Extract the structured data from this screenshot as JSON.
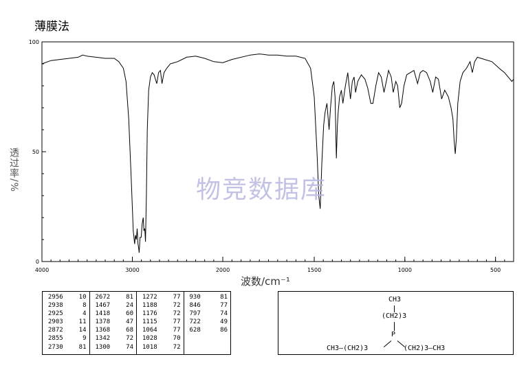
{
  "method_label": "薄膜法",
  "watermark": "物竞数据库",
  "chart_data": {
    "type": "line",
    "xlabel": "波数/cm⁻¹",
    "ylabel": "透过率/%",
    "xlim": [
      4000,
      400
    ],
    "ylim": [
      0,
      100
    ],
    "x_ticks": [
      "4000",
      "3000",
      "2000",
      "1500",
      "1000",
      "500"
    ],
    "y_ticks": [
      "0",
      "50",
      "100"
    ],
    "series": [
      {
        "points": [
          [
            4000,
            90
          ],
          [
            3900,
            91.5
          ],
          [
            3800,
            92
          ],
          [
            3700,
            92.5
          ],
          [
            3600,
            93
          ],
          [
            3550,
            94
          ],
          [
            3500,
            93.5
          ],
          [
            3400,
            93
          ],
          [
            3300,
            92.5
          ],
          [
            3200,
            92.5
          ],
          [
            3150,
            91
          ],
          [
            3100,
            88
          ],
          [
            3070,
            82
          ],
          [
            3040,
            65
          ],
          [
            3010,
            35
          ],
          [
            2990,
            14
          ],
          [
            2975,
            8
          ],
          [
            2966,
            12
          ],
          [
            2956,
            10
          ],
          [
            2947,
            15
          ],
          [
            2938,
            8
          ],
          [
            2930,
            6
          ],
          [
            2925,
            4
          ],
          [
            2915,
            11
          ],
          [
            2903,
            11
          ],
          [
            2892,
            17
          ],
          [
            2880,
            20
          ],
          [
            2872,
            14
          ],
          [
            2862,
            15
          ],
          [
            2855,
            9
          ],
          [
            2845,
            30
          ],
          [
            2835,
            60
          ],
          [
            2820,
            78
          ],
          [
            2800,
            84
          ],
          [
            2780,
            86
          ],
          [
            2760,
            85
          ],
          [
            2730,
            81
          ],
          [
            2710,
            86
          ],
          [
            2690,
            87
          ],
          [
            2672,
            81
          ],
          [
            2650,
            86
          ],
          [
            2620,
            88
          ],
          [
            2580,
            90
          ],
          [
            2500,
            91
          ],
          [
            2400,
            93
          ],
          [
            2300,
            93.5
          ],
          [
            2200,
            92.5
          ],
          [
            2100,
            91
          ],
          [
            2000,
            90.5
          ],
          [
            1950,
            92
          ],
          [
            1850,
            94
          ],
          [
            1800,
            94.5
          ],
          [
            1750,
            94
          ],
          [
            1700,
            94
          ],
          [
            1650,
            93.5
          ],
          [
            1600,
            93.5
          ],
          [
            1550,
            92.5
          ],
          [
            1520,
            88
          ],
          [
            1500,
            75
          ],
          [
            1485,
            50
          ],
          [
            1475,
            30
          ],
          [
            1467,
            24
          ],
          [
            1458,
            45
          ],
          [
            1448,
            62
          ],
          [
            1440,
            68
          ],
          [
            1430,
            72
          ],
          [
            1418,
            60
          ],
          [
            1410,
            70
          ],
          [
            1400,
            80
          ],
          [
            1392,
            82
          ],
          [
            1385,
            75
          ],
          [
            1378,
            47
          ],
          [
            1372,
            62
          ],
          [
            1368,
            68
          ],
          [
            1360,
            75
          ],
          [
            1350,
            78
          ],
          [
            1342,
            72
          ],
          [
            1330,
            79
          ],
          [
            1315,
            86
          ],
          [
            1300,
            74
          ],
          [
            1290,
            82
          ],
          [
            1280,
            84
          ],
          [
            1272,
            77
          ],
          [
            1260,
            82
          ],
          [
            1240,
            85
          ],
          [
            1220,
            83
          ],
          [
            1205,
            79
          ],
          [
            1188,
            72
          ],
          [
            1176,
            72
          ],
          [
            1160,
            80
          ],
          [
            1145,
            86
          ],
          [
            1130,
            84
          ],
          [
            1115,
            77
          ],
          [
            1100,
            83
          ],
          [
            1090,
            87
          ],
          [
            1075,
            84
          ],
          [
            1064,
            77
          ],
          [
            1050,
            82
          ],
          [
            1040,
            80
          ],
          [
            1028,
            70
          ],
          [
            1018,
            72
          ],
          [
            1005,
            80
          ],
          [
            990,
            85
          ],
          [
            970,
            86
          ],
          [
            950,
            87
          ],
          [
            930,
            81
          ],
          [
            915,
            86
          ],
          [
            900,
            87
          ],
          [
            880,
            86
          ],
          [
            860,
            82
          ],
          [
            846,
            77
          ],
          [
            830,
            84
          ],
          [
            815,
            83
          ],
          [
            797,
            74
          ],
          [
            780,
            78
          ],
          [
            760,
            75
          ],
          [
            745,
            70
          ],
          [
            735,
            65
          ],
          [
            728,
            55
          ],
          [
            722,
            49
          ],
          [
            716,
            56
          ],
          [
            708,
            72
          ],
          [
            695,
            82
          ],
          [
            680,
            86
          ],
          [
            660,
            88
          ],
          [
            640,
            91
          ],
          [
            628,
            86
          ],
          [
            615,
            91
          ],
          [
            600,
            93
          ],
          [
            560,
            92
          ],
          [
            520,
            91
          ],
          [
            480,
            88
          ],
          [
            450,
            86
          ],
          [
            430,
            84
          ],
          [
            410,
            82
          ],
          [
            400,
            83
          ]
        ]
      }
    ]
  },
  "peak_table": [
    [
      [
        "2956",
        "10"
      ],
      [
        "2938",
        "8"
      ],
      [
        "2925",
        "4"
      ],
      [
        "2903",
        "11"
      ],
      [
        "2872",
        "14"
      ],
      [
        "2855",
        "9"
      ],
      [
        "2730",
        "81"
      ]
    ],
    [
      [
        "2672",
        "81"
      ],
      [
        "1467",
        "24"
      ],
      [
        "1418",
        "60"
      ],
      [
        "1378",
        "47"
      ],
      [
        "1368",
        "68"
      ],
      [
        "1342",
        "72"
      ],
      [
        "1300",
        "74"
      ]
    ],
    [
      [
        "1272",
        "77"
      ],
      [
        "1188",
        "72"
      ],
      [
        "1176",
        "72"
      ],
      [
        "1115",
        "77"
      ],
      [
        "1064",
        "77"
      ],
      [
        "1028",
        "70"
      ],
      [
        "1018",
        "72"
      ]
    ],
    [
      [
        "930",
        "81"
      ],
      [
        "846",
        "77"
      ],
      [
        "797",
        "74"
      ],
      [
        "722",
        "49"
      ],
      [
        "628",
        "86"
      ]
    ]
  ],
  "structure": {
    "top_ch3": "CH3",
    "top_ch2": "(CH2)3",
    "p_atom": "P",
    "left_chain": "CH3—(CH2)3",
    "right_chain": "(CH2)3—CH3"
  }
}
